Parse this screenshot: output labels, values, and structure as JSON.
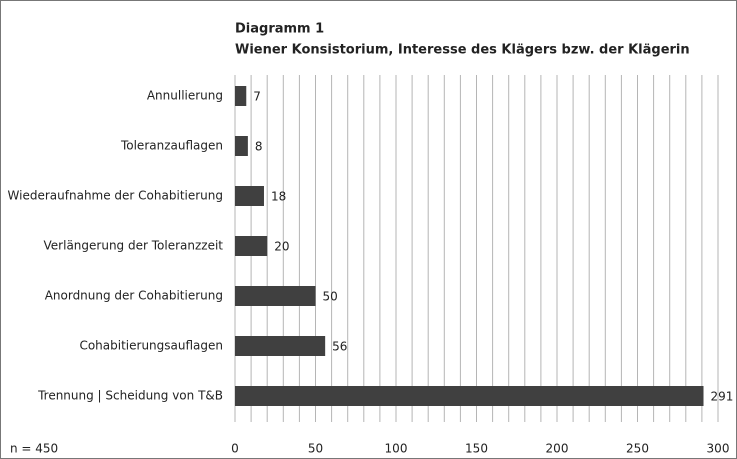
{
  "chart_data": {
    "type": "hbar",
    "title": "Diagramm 1",
    "subtitle": "Wiener Konsistorium, Interesse des Klägers bzw. der Klägerin",
    "annotation": "n = 450",
    "categories": [
      "Annullierung",
      "Toleranzauflagen",
      "Wiederaufnahme der Cohabitierung",
      "Verlängerung der Toleranzzeit",
      "Anordnung der Cohabitierung",
      "Cohabitierungsauflagen",
      "Trennung | Scheidung von T&B"
    ],
    "values": [
      7,
      8,
      18,
      20,
      50,
      56,
      291
    ],
    "color": "#404040",
    "xlim": [
      0,
      300
    ],
    "xticks": [
      0,
      50,
      100,
      150,
      200,
      250,
      300
    ],
    "xminor": [
      10,
      20,
      30,
      40,
      60,
      70,
      80,
      90,
      110,
      120,
      130,
      140,
      160,
      170,
      180,
      190,
      210,
      220,
      230,
      240,
      260,
      270,
      280,
      290
    ],
    "grid": true
  }
}
